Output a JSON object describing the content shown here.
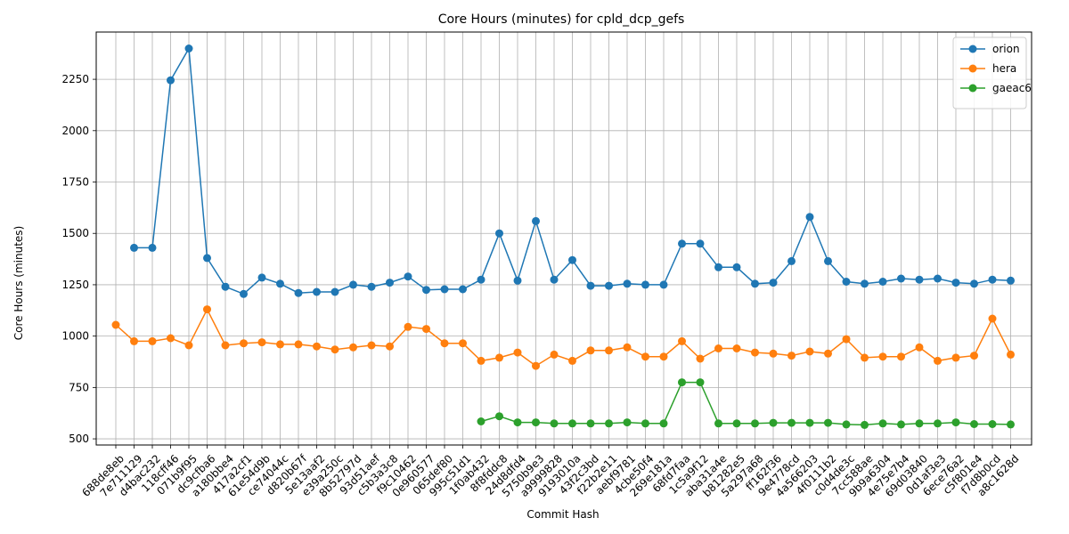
{
  "chart_data": {
    "type": "line",
    "title": "Core Hours (minutes) for cpld_dcp_gefs",
    "xlabel": "Commit Hash",
    "ylabel": "Core Hours (minutes)",
    "ylim": [
      470,
      2480
    ],
    "yticks": [
      500,
      750,
      1000,
      1250,
      1500,
      1750,
      2000,
      2250
    ],
    "grid": true,
    "legend_position": "top-right",
    "categories": [
      "688de8eb",
      "7e711129",
      "d4bac232",
      "118cff46",
      "071b9f95",
      "dc9cfba6",
      "a180bbe4",
      "417a2cf1",
      "61e54d9b",
      "ce74044c",
      "d820b67f",
      "5e13aaf2",
      "e39a250c",
      "8b52797d",
      "93d51aef",
      "c5b3a3c8",
      "f9c10462",
      "0e960577",
      "065def80",
      "995c51d1",
      "1f0ab432",
      "8f8fddc8",
      "24d8dfd4",
      "5750b9e3",
      "a9999828",
      "9193010a",
      "43f2c3bd",
      "f22b2e11",
      "aebf9781",
      "4cbe50f4",
      "269e181a",
      "68fd7faa",
      "1c5a9f12",
      "aba31a4e",
      "b81282e5",
      "5a297a68",
      "ff162f36",
      "9e4778cd",
      "4a566203",
      "4f0111b2",
      "c0d4de3c",
      "7cc588ae",
      "9b9a6304",
      "4e75e7b4",
      "69d03840",
      "0d1af3e3",
      "6ece76a2",
      "c5f801e4",
      "f7d8b0cd",
      "a8c1628d"
    ],
    "series": [
      {
        "name": "orion",
        "color": "#1f77b4",
        "values": [
          null,
          1430,
          1430,
          2245,
          2400,
          1380,
          1240,
          1205,
          1285,
          1255,
          1210,
          1215,
          1215,
          1250,
          1240,
          1260,
          1290,
          1225,
          1228,
          1228,
          1275,
          1500,
          1270,
          1560,
          1275,
          1370,
          1245,
          1245,
          1255,
          1250,
          1250,
          1450,
          1450,
          1335,
          1335,
          1255,
          1260,
          1365,
          1580,
          1365,
          1265,
          1255,
          1265,
          1280,
          1275,
          1280,
          1260,
          1255,
          1275,
          1270
        ]
      },
      {
        "name": "hera",
        "color": "#ff7f0e",
        "values": [
          1055,
          975,
          975,
          990,
          955,
          1130,
          955,
          965,
          970,
          960,
          960,
          950,
          935,
          945,
          955,
          950,
          1045,
          1035,
          965,
          965,
          880,
          895,
          920,
          855,
          910,
          880,
          930,
          930,
          945,
          900,
          900,
          975,
          890,
          940,
          940,
          920,
          915,
          905,
          925,
          915,
          985,
          895,
          900,
          900,
          945,
          880,
          895,
          905,
          1085,
          910
        ]
      },
      {
        "name": "gaeac6",
        "color": "#2ca02c",
        "values": [
          null,
          null,
          null,
          null,
          null,
          null,
          null,
          null,
          null,
          null,
          null,
          null,
          null,
          null,
          null,
          null,
          null,
          null,
          null,
          null,
          585,
          610,
          580,
          580,
          575,
          575,
          575,
          575,
          580,
          575,
          575,
          775,
          775,
          575,
          575,
          575,
          578,
          578,
          578,
          578,
          570,
          568,
          575,
          570,
          575,
          575,
          580,
          572,
          572,
          570
        ]
      }
    ]
  }
}
